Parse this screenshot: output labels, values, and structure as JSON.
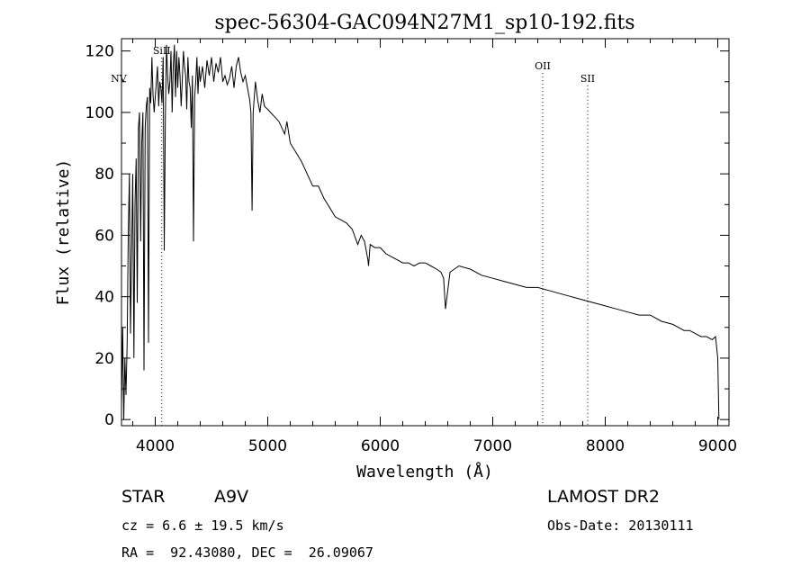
{
  "chart_data": {
    "type": "line",
    "title": "spec-56304-GAC094N27M1_sp10-192.fits",
    "xlabel": "Wavelength (Å)",
    "ylabel": "Flux (relative)",
    "xlim": [
      3700,
      9100
    ],
    "ylim": [
      -2,
      124
    ],
    "xticks": [
      4000,
      5000,
      6000,
      7000,
      8000,
      9000
    ],
    "yticks": [
      0,
      20,
      40,
      60,
      80,
      100,
      120
    ],
    "grid": false,
    "line_color": "#000000",
    "series": [
      {
        "x": [
          3700,
          3710,
          3720,
          3730,
          3740,
          3750,
          3760,
          3770,
          3780,
          3790,
          3800,
          3810,
          3820,
          3830,
          3840,
          3850,
          3860,
          3870,
          3880,
          3890,
          3900,
          3910,
          3920,
          3930,
          3940,
          3950,
          3960,
          3970,
          3980,
          3990,
          4000,
          4010,
          4020,
          4030,
          4040,
          4050,
          4060,
          4070,
          4080,
          4090,
          4100,
          4110,
          4120,
          4130,
          4140,
          4150,
          4160,
          4170,
          4180,
          4190,
          4200,
          4210,
          4220,
          4230,
          4240,
          4250,
          4260,
          4270,
          4280,
          4290,
          4300,
          4310,
          4320,
          4330,
          4340,
          4350,
          4360,
          4370,
          4380,
          4390,
          4400,
          4420,
          4440,
          4460,
          4480,
          4500,
          4520,
          4540,
          4560,
          4580,
          4600,
          4620,
          4640,
          4660,
          4680,
          4700,
          4720,
          4740,
          4760,
          4780,
          4800,
          4820,
          4840,
          4850,
          4861,
          4870,
          4890,
          4910,
          4930,
          4950,
          4970,
          5000,
          5050,
          5100,
          5150,
          5170,
          5200,
          5250,
          5300,
          5350,
          5400,
          5450,
          5500,
          5550,
          5600,
          5650,
          5700,
          5750,
          5800,
          5830,
          5860,
          5890,
          5896,
          5910,
          5950,
          6000,
          6050,
          6100,
          6150,
          6200,
          6250,
          6300,
          6350,
          6400,
          6450,
          6500,
          6540,
          6563,
          6580,
          6620,
          6700,
          6800,
          6900,
          7000,
          7100,
          7200,
          7300,
          7400,
          7500,
          7600,
          7700,
          7800,
          7900,
          8000,
          8100,
          8200,
          8300,
          8400,
          8500,
          8600,
          8650,
          8700,
          8750,
          8800,
          8850,
          8900,
          8950,
          8980,
          9000,
          9010
        ],
        "values": [
          5,
          30,
          0,
          20,
          8,
          25,
          60,
          80,
          28,
          55,
          80,
          20,
          70,
          85,
          38,
          95,
          100,
          58,
          90,
          100,
          16,
          95,
          102,
          105,
          25,
          108,
          103,
          118,
          106,
          100,
          105,
          110,
          115,
          102,
          110,
          108,
          103,
          118,
          55,
          100,
          122,
          112,
          106,
          110,
          120,
          100,
          115,
          122,
          105,
          120,
          108,
          118,
          112,
          102,
          110,
          120,
          115,
          112,
          101,
          118,
          110,
          108,
          95,
          112,
          58,
          105,
          110,
          118,
          106,
          115,
          110,
          115,
          108,
          117,
          112,
          118,
          110,
          116,
          113,
          118,
          110,
          112,
          109,
          111,
          115,
          108,
          115,
          118,
          113,
          110,
          112,
          108,
          104,
          100,
          68,
          100,
          110,
          104,
          100,
          106,
          102,
          101,
          99,
          97,
          93,
          97,
          90,
          87,
          84,
          80,
          76,
          76,
          72,
          69,
          66,
          65,
          64,
          62,
          57,
          60,
          58,
          52,
          50,
          57,
          56,
          56,
          54,
          53,
          52,
          51,
          51,
          50,
          51,
          51,
          50,
          49,
          48,
          46,
          36,
          48,
          50,
          49,
          47,
          46,
          45,
          44,
          43,
          43,
          42,
          41,
          40,
          39,
          38,
          37,
          36,
          35,
          34,
          34,
          32,
          31,
          30,
          29,
          29,
          28,
          27,
          27,
          26,
          27,
          20,
          0
        ]
      }
    ],
    "line_markers": [
      {
        "label": "NV",
        "x": 3675,
        "label_y": 110
      },
      {
        "label": "SiII",
        "x": 4058,
        "label_y": 119
      },
      {
        "label": "OII",
        "x": 7444,
        "label_y": 114
      },
      {
        "label": "SII",
        "x": 7844,
        "label_y": 110
      }
    ]
  },
  "info": {
    "object_class": "STAR",
    "subclass": "A9V",
    "survey": "LAMOST DR2",
    "redshift": "cz = 6.6 ± 19.5 km/s",
    "obs_date": "Obs-Date: 20130111",
    "coords": "RA =  92.43080, DEC =  26.09067"
  }
}
